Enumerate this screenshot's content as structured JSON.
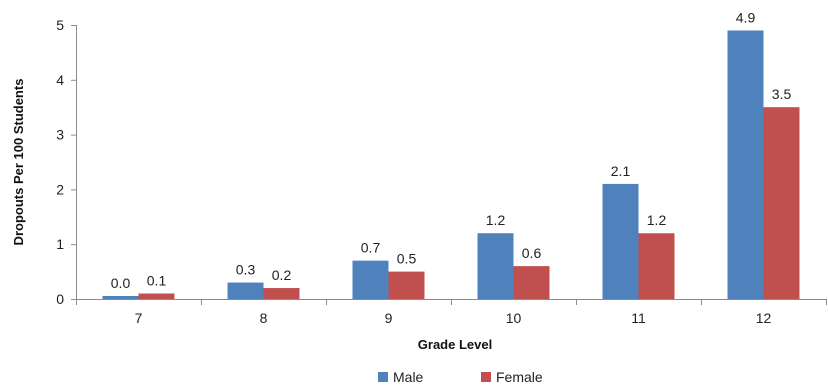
{
  "chart_data": {
    "type": "bar",
    "title": "",
    "xlabel": "Grade Level",
    "ylabel": "Dropouts Per 100 Students",
    "categories": [
      "7",
      "8",
      "9",
      "10",
      "11",
      "12"
    ],
    "ylim": [
      0,
      5
    ],
    "yticks": [
      0,
      1,
      2,
      3,
      4,
      5
    ],
    "grid": false,
    "legend_position": "bottom",
    "series": [
      {
        "name": "Male",
        "color": "#4F81BD",
        "values": [
          0.0,
          0.3,
          0.7,
          1.2,
          2.1,
          4.9
        ]
      },
      {
        "name": "Female",
        "color": "#C0504D",
        "values": [
          0.1,
          0.2,
          0.5,
          0.6,
          1.2,
          3.5
        ]
      }
    ]
  }
}
